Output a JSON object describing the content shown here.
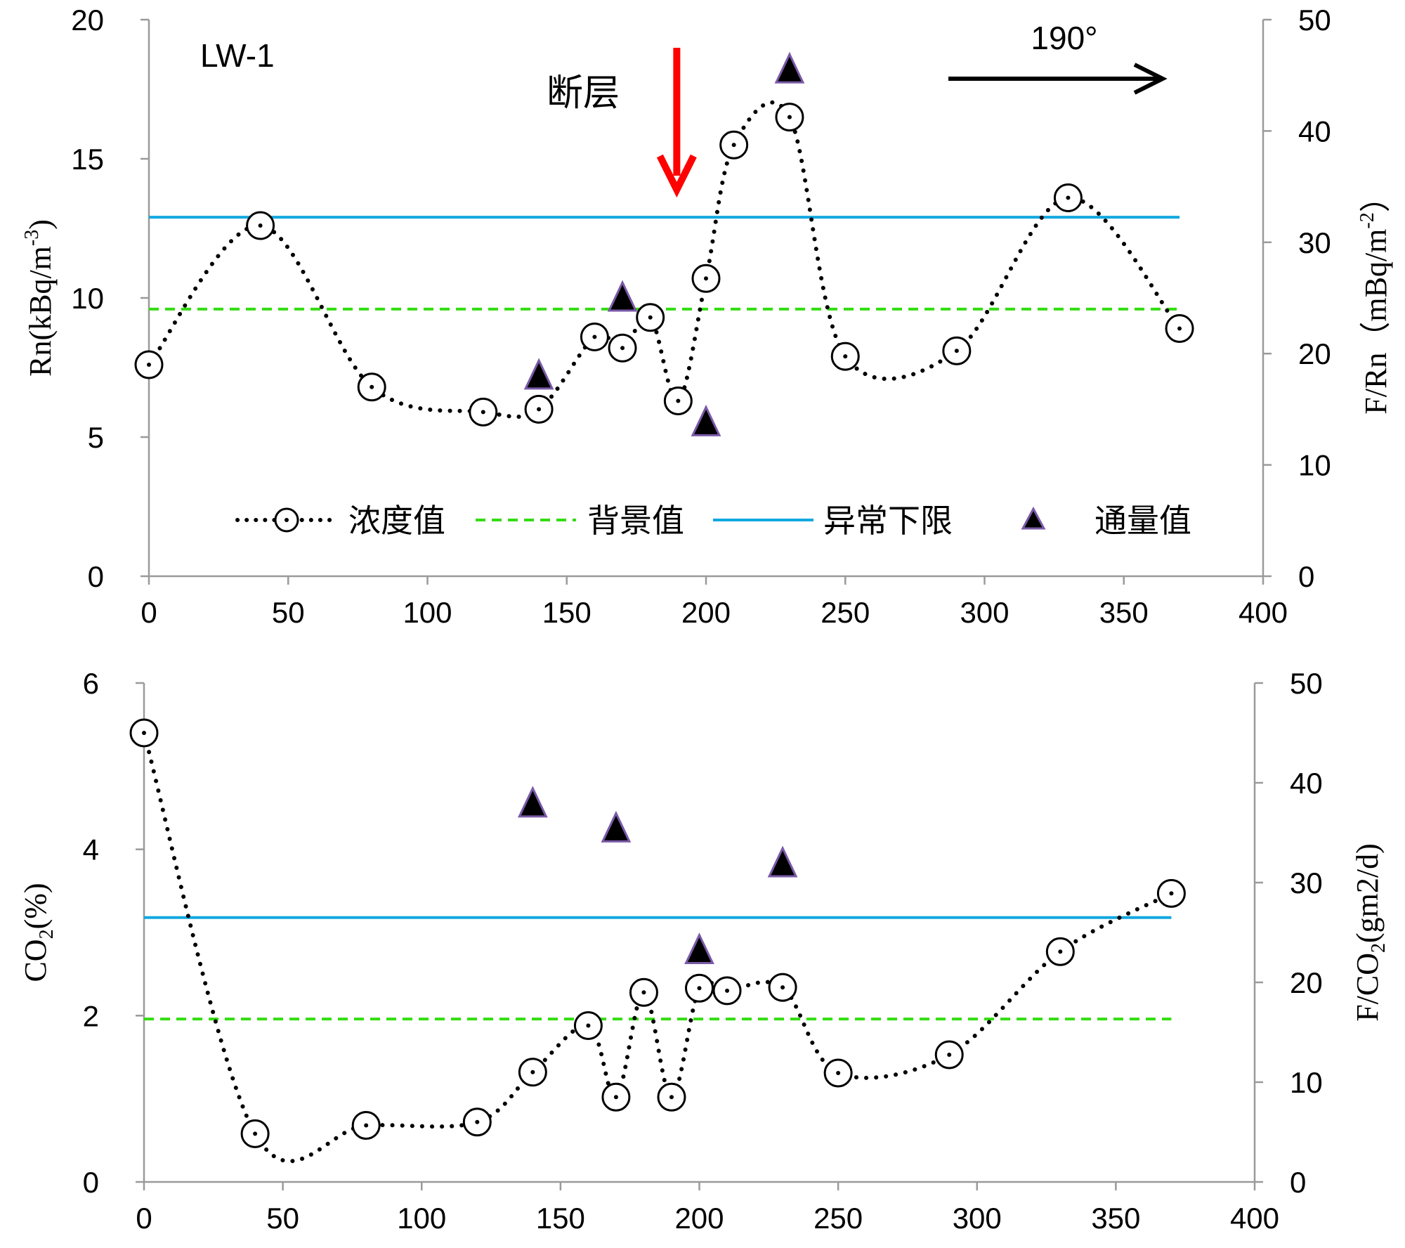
{
  "colors": {
    "concentration": "#000000",
    "background": "#33dd11",
    "anomaly": "#11a8e0",
    "flux_fill": "#000000",
    "flux_edge": "#7a5aa8",
    "fault_arrow": "#ff0000",
    "direction_arrow": "#000000",
    "axis": "#9a9a9a"
  },
  "chart_data": [
    {
      "type": "line",
      "panel": "top",
      "site_label": "LW-1",
      "fault_label": "断层",
      "fault_x": 190,
      "direction_label": "190°",
      "xlim": [
        0,
        400
      ],
      "x_ticks": [
        0,
        50,
        100,
        150,
        200,
        250,
        300,
        350,
        400
      ],
      "ylabel": "Rn(kBq/m-3)",
      "ylim": [
        0,
        20
      ],
      "y_ticks": [
        0,
        5,
        10,
        15,
        20
      ],
      "y2label": "F/Rn（mBq/m-2）",
      "y2lim": [
        0,
        50
      ],
      "y2_ticks": [
        0,
        10,
        20,
        30,
        40,
        50
      ],
      "legend": [
        "浓度值",
        "背景值",
        "异常下限",
        "通量值"
      ],
      "legend_position": "bottom-center",
      "series": [
        {
          "name": "浓度值",
          "axis": "left",
          "style": "dotted-with-circles",
          "x": [
            0,
            40,
            80,
            120,
            140,
            160,
            170,
            180,
            190,
            200,
            210,
            230,
            250,
            290,
            330,
            370
          ],
          "y": [
            7.6,
            12.6,
            6.8,
            5.9,
            6.0,
            8.6,
            8.2,
            9.3,
            6.3,
            10.7,
            15.5,
            16.5,
            7.9,
            8.1,
            13.6,
            8.9
          ]
        },
        {
          "name": "背景值",
          "axis": "left",
          "style": "dashed",
          "x": [
            0,
            370
          ],
          "y": [
            9.6,
            9.6
          ]
        },
        {
          "name": "异常下限",
          "axis": "left",
          "style": "solid",
          "x": [
            0,
            370
          ],
          "y": [
            12.9,
            12.9
          ]
        },
        {
          "name": "通量值",
          "axis": "right",
          "style": "triangle-markers",
          "x": [
            140,
            170,
            200,
            230
          ],
          "y": [
            18.0,
            25.0,
            13.8,
            45.5
          ]
        }
      ]
    },
    {
      "type": "line",
      "panel": "bottom",
      "xlim": [
        0,
        400
      ],
      "x_ticks": [
        0,
        50,
        100,
        150,
        200,
        250,
        300,
        350,
        400
      ],
      "ylabel": "CO2(%)",
      "ylim": [
        0,
        6
      ],
      "y_ticks": [
        0,
        2,
        4,
        6
      ],
      "y2label": "F/CO2(gm2/d)",
      "y2lim": [
        0,
        50
      ],
      "y2_ticks": [
        0,
        10,
        20,
        30,
        40,
        50
      ],
      "series": [
        {
          "name": "浓度值",
          "axis": "left",
          "style": "dotted-with-circles",
          "x": [
            0,
            40,
            80,
            120,
            140,
            160,
            170,
            180,
            190,
            200,
            210,
            230,
            250,
            290,
            330,
            370
          ],
          "y": [
            5.4,
            0.58,
            0.68,
            0.72,
            1.32,
            1.88,
            1.02,
            2.28,
            1.02,
            2.33,
            2.3,
            2.34,
            1.31,
            1.53,
            2.77,
            3.47
          ]
        },
        {
          "name": "背景值",
          "axis": "left",
          "style": "dashed",
          "x": [
            0,
            370
          ],
          "y": [
            1.96,
            1.96
          ]
        },
        {
          "name": "异常下限",
          "axis": "left",
          "style": "solid",
          "x": [
            0,
            370
          ],
          "y": [
            3.18,
            3.18
          ]
        },
        {
          "name": "通量值",
          "axis": "right",
          "style": "triangle-markers",
          "x": [
            140,
            170,
            200,
            230
          ],
          "y": [
            37.9,
            35.4,
            23.2,
            31.9
          ]
        }
      ]
    }
  ]
}
